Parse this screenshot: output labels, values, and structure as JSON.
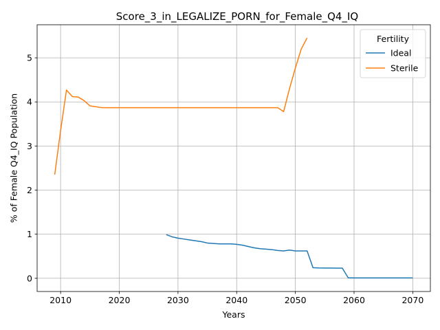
{
  "chart_data": {
    "type": "line",
    "title": "Score_3_in_LEGALIZE_PORN_for_Female_Q4_IQ",
    "xlabel": "Years",
    "ylabel": "% of Female Q4_IQ Population",
    "xlim": [
      2006,
      2073
    ],
    "ylim": [
      -0.3,
      5.75
    ],
    "xticks": [
      2010,
      2020,
      2030,
      2040,
      2050,
      2060,
      2070
    ],
    "yticks": [
      0,
      1,
      2,
      3,
      4,
      5
    ],
    "grid": true,
    "legend": {
      "title": "Fertility",
      "placement": "top-right"
    },
    "series": [
      {
        "name": "Ideal",
        "color": "#1f77b4",
        "x": [
          2028,
          2029,
          2030,
          2031,
          2032,
          2033,
          2034,
          2035,
          2036,
          2037,
          2038,
          2039,
          2040,
          2041,
          2042,
          2043,
          2044,
          2045,
          2046,
          2047,
          2048,
          2049,
          2050,
          2051,
          2052,
          2053,
          2054,
          2055,
          2056,
          2057,
          2058,
          2059,
          2060,
          2061,
          2062,
          2063,
          2064,
          2065,
          2066,
          2067,
          2068,
          2069,
          2070
        ],
        "y": [
          0.99,
          0.94,
          0.91,
          0.89,
          0.87,
          0.85,
          0.83,
          0.8,
          0.79,
          0.78,
          0.78,
          0.78,
          0.77,
          0.75,
          0.72,
          0.69,
          0.67,
          0.66,
          0.65,
          0.63,
          0.62,
          0.64,
          0.62,
          0.62,
          0.62,
          0.24,
          0.235,
          0.233,
          0.232,
          0.231,
          0.23,
          0.01,
          0.008,
          0.008,
          0.008,
          0.008,
          0.008,
          0.008,
          0.008,
          0.008,
          0.008,
          0.008,
          0.008
        ]
      },
      {
        "name": "Sterile",
        "color": "#ff7f0e",
        "x": [
          2009,
          2010,
          2011,
          2012,
          2013,
          2014,
          2015,
          2016,
          2017,
          2018,
          2019,
          2020,
          2021,
          2022,
          2023,
          2024,
          2025,
          2026,
          2027,
          2028,
          2029,
          2030,
          2031,
          2032,
          2033,
          2034,
          2035,
          2036,
          2037,
          2038,
          2039,
          2040,
          2041,
          2042,
          2043,
          2044,
          2045,
          2046,
          2047,
          2048,
          2049,
          2050,
          2051,
          2052
        ],
        "y": [
          2.35,
          3.35,
          4.27,
          4.12,
          4.11,
          4.03,
          3.91,
          3.89,
          3.87,
          3.87,
          3.87,
          3.87,
          3.87,
          3.87,
          3.87,
          3.87,
          3.87,
          3.87,
          3.87,
          3.87,
          3.87,
          3.87,
          3.87,
          3.87,
          3.87,
          3.87,
          3.87,
          3.87,
          3.87,
          3.87,
          3.87,
          3.87,
          3.87,
          3.87,
          3.87,
          3.87,
          3.87,
          3.87,
          3.87,
          3.78,
          4.3,
          4.77,
          5.2,
          5.45
        ]
      }
    ]
  }
}
